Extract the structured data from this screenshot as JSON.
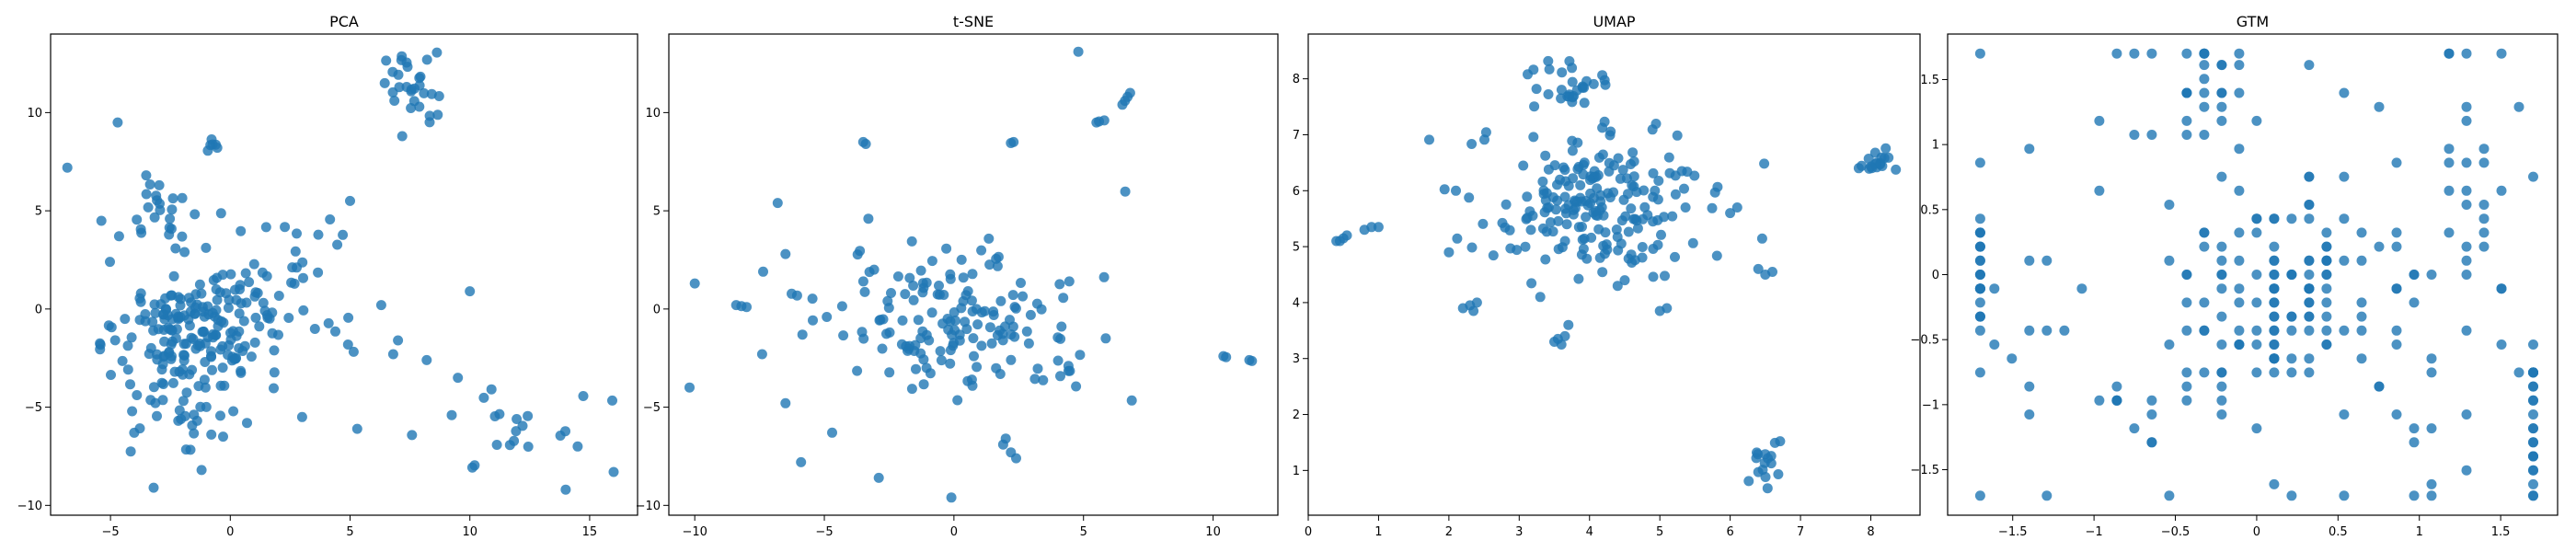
{
  "colors": {
    "marker": "#1f77b4",
    "axes": "#000000",
    "background": "#ffffff"
  },
  "chart_data": [
    {
      "type": "scatter",
      "title": "PCA",
      "xlabel": "",
      "ylabel": "",
      "xlim": [
        -7.5,
        17.0
      ],
      "ylim": [
        -10.5,
        14.0
      ],
      "xticks": [
        -5,
        0,
        5,
        10,
        15
      ],
      "yticks": [
        -10,
        -5,
        0,
        5,
        10
      ],
      "grid": false,
      "legend": "none",
      "clusters": [
        {
          "cx": -1.5,
          "cy": -0.8,
          "sx": 1.6,
          "sy": 1.5,
          "n": 170
        },
        {
          "cx": 1.8,
          "cy": 1.2,
          "sx": 1.5,
          "sy": 1.8,
          "n": 45
        },
        {
          "cx": -3.0,
          "cy": 4.8,
          "sx": 0.8,
          "sy": 0.9,
          "n": 25
        },
        {
          "cx": -1.2,
          "cy": -5.0,
          "sx": 0.8,
          "sy": 1.2,
          "n": 22
        },
        {
          "cx": -1.0,
          "cy": 8.2,
          "sx": 0.3,
          "sy": 0.4,
          "n": 6
        },
        {
          "cx": 7.5,
          "cy": 11.2,
          "sx": 0.6,
          "sy": 0.9,
          "n": 30
        },
        {
          "cx": 12.0,
          "cy": -6.5,
          "sx": 1.8,
          "sy": 1.0,
          "n": 20
        },
        {
          "cx": -4.5,
          "cy": -3.5,
          "sx": 1.0,
          "sy": 2.5,
          "n": 10
        }
      ],
      "points": [
        [
          -6.8,
          7.2
        ],
        [
          -4.7,
          9.5
        ],
        [
          5.0,
          5.5
        ],
        [
          5.3,
          -6.1
        ],
        [
          10.0,
          0.9
        ],
        [
          14.5,
          -7.0
        ],
        [
          16.0,
          -8.3
        ],
        [
          14.0,
          -9.2
        ],
        [
          -3.2,
          -9.1
        ],
        [
          -1.2,
          -8.2
        ],
        [
          -0.3,
          -6.5
        ],
        [
          0.7,
          -5.8
        ],
        [
          6.8,
          -2.3
        ],
        [
          8.2,
          -2.6
        ],
        [
          9.5,
          -3.5
        ],
        [
          6.3,
          0.2
        ],
        [
          7.0,
          -1.6
        ],
        [
          3.0,
          -5.5
        ]
      ]
    },
    {
      "type": "scatter",
      "title": "t-SNE",
      "xlabel": "",
      "ylabel": "",
      "xlim": [
        -11.0,
        12.5
      ],
      "ylim": [
        -10.5,
        14.0
      ],
      "xticks": [
        -10,
        -5,
        0,
        5,
        10
      ],
      "yticks": [
        -10,
        -5,
        0,
        5,
        10
      ],
      "grid": false,
      "legend": "none",
      "clusters": [
        {
          "cx": 0.0,
          "cy": -0.3,
          "sx": 2.6,
          "sy": 1.9,
          "n": 150
        },
        {
          "cx": 4.2,
          "cy": -3.0,
          "sx": 0.6,
          "sy": 0.7,
          "n": 10
        }
      ],
      "points": [
        [
          4.8,
          13.1
        ],
        [
          6.6,
          10.6
        ],
        [
          6.8,
          11.0
        ],
        [
          6.5,
          10.4
        ],
        [
          6.7,
          10.8
        ],
        [
          5.8,
          9.6
        ],
        [
          5.5,
          9.5
        ],
        [
          5.6,
          9.55
        ],
        [
          -3.5,
          8.5
        ],
        [
          -3.4,
          8.4
        ],
        [
          2.3,
          8.5
        ],
        [
          2.2,
          8.45
        ],
        [
          -10.2,
          -4.0
        ],
        [
          -10.0,
          1.3
        ],
        [
          -8.4,
          0.2
        ],
        [
          -8.2,
          0.15
        ],
        [
          -8.0,
          0.1
        ],
        [
          -7.4,
          -2.3
        ],
        [
          -6.5,
          -4.8
        ],
        [
          -6.8,
          5.4
        ],
        [
          -6.5,
          2.8
        ],
        [
          -5.9,
          -7.8
        ],
        [
          -4.7,
          -6.3
        ],
        [
          -2.9,
          -8.6
        ],
        [
          -0.1,
          -9.6
        ],
        [
          2.0,
          -6.6
        ],
        [
          2.2,
          -7.3
        ],
        [
          2.4,
          -7.6
        ],
        [
          1.9,
          -6.9
        ],
        [
          -3.3,
          4.6
        ],
        [
          10.4,
          -2.4
        ],
        [
          10.5,
          -2.45
        ],
        [
          11.4,
          -2.6
        ],
        [
          11.5,
          -2.65
        ]
      ]
    },
    {
      "type": "scatter",
      "title": "UMAP",
      "xlabel": "",
      "ylabel": "",
      "xlim": [
        0.0,
        8.7
      ],
      "ylim": [
        0.2,
        8.8
      ],
      "xticks": [
        0,
        1,
        2,
        3,
        4,
        5,
        6,
        7,
        8
      ],
      "yticks": [
        1,
        2,
        3,
        4,
        5,
        6,
        7,
        8
      ],
      "grid": false,
      "legend": "none",
      "clusters": [
        {
          "cx": 4.0,
          "cy": 5.7,
          "sx": 0.85,
          "sy": 0.7,
          "n": 200
        },
        {
          "cx": 3.7,
          "cy": 7.9,
          "sx": 0.35,
          "sy": 0.25,
          "n": 28
        },
        {
          "cx": 8.1,
          "cy": 6.5,
          "sx": 0.12,
          "sy": 0.1,
          "n": 18
        },
        {
          "cx": 6.5,
          "cy": 1.1,
          "sx": 0.15,
          "sy": 0.3,
          "n": 16
        }
      ],
      "points": [
        [
          0.4,
          5.1
        ],
        [
          0.5,
          5.15
        ],
        [
          0.55,
          5.2
        ],
        [
          0.45,
          5.1
        ],
        [
          0.8,
          5.3
        ],
        [
          0.9,
          5.35
        ],
        [
          1.0,
          5.35
        ],
        [
          2.2,
          3.9
        ],
        [
          2.35,
          3.85
        ],
        [
          2.4,
          4.0
        ],
        [
          2.3,
          3.95
        ],
        [
          3.5,
          3.3
        ],
        [
          3.6,
          3.25
        ],
        [
          3.65,
          3.4
        ],
        [
          3.55,
          3.35
        ],
        [
          3.7,
          3.6
        ],
        [
          3.3,
          4.1
        ],
        [
          5.1,
          3.9
        ],
        [
          5.0,
          3.85
        ],
        [
          4.5,
          4.4
        ],
        [
          4.4,
          4.3
        ],
        [
          6.4,
          4.6
        ],
        [
          6.5,
          4.5
        ],
        [
          6.6,
          4.55
        ],
        [
          2.0,
          4.9
        ],
        [
          2.1,
          6.0
        ],
        [
          6.0,
          5.6
        ],
        [
          6.1,
          5.7
        ]
      ]
    },
    {
      "type": "scatter",
      "title": "GTM",
      "xlabel": "",
      "ylabel": "",
      "xlim": [
        -1.9,
        1.85
      ],
      "ylim": [
        -1.85,
        1.85
      ],
      "xticks": [
        -1.5,
        -1.0,
        -0.5,
        0.0,
        0.5,
        1.0,
        1.5
      ],
      "yticks": [
        -1.5,
        -1.0,
        -0.5,
        0.0,
        0.5,
        1.0,
        1.5
      ],
      "grid": false,
      "legend": "none",
      "grid_step": 0.1075,
      "clusters": [
        {
          "cx": 0.2,
          "cy": -0.1,
          "sx": 0.35,
          "sy": 0.4,
          "n": 120
        },
        {
          "cx": -1.7,
          "cy": 0.0,
          "sx": 0.03,
          "sy": 0.3,
          "n": 25
        },
        {
          "cx": 1.7,
          "cy": -1.2,
          "sx": 0.06,
          "sy": 0.35,
          "n": 22
        },
        {
          "cx": -0.3,
          "cy": 1.45,
          "sx": 0.12,
          "sy": 0.25,
          "n": 25
        },
        {
          "cx": 1.35,
          "cy": 0.6,
          "sx": 0.2,
          "sy": 0.4,
          "n": 25
        },
        {
          "cx": -0.7,
          "cy": -0.9,
          "sx": 0.5,
          "sy": 0.25,
          "n": 20
        },
        {
          "cx": 0.9,
          "cy": -0.9,
          "sx": 0.5,
          "sy": 0.4,
          "n": 20
        }
      ],
      "points": [
        [
          -1.7,
          1.7
        ],
        [
          -1.7,
          -1.7
        ],
        [
          -1.25,
          -1.7
        ],
        [
          -0.5,
          -1.7
        ],
        [
          0.5,
          -1.7
        ],
        [
          1.0,
          -1.7
        ],
        [
          1.1,
          -1.7
        ],
        [
          1.7,
          -1.7
        ],
        [
          1.7,
          -1.6
        ],
        [
          1.15,
          1.7
        ],
        [
          1.2,
          1.7
        ],
        [
          1.25,
          1.7
        ],
        [
          1.55,
          1.7
        ],
        [
          -0.85,
          1.7
        ],
        [
          -0.75,
          1.7
        ],
        [
          -0.65,
          1.7
        ],
        [
          -0.4,
          1.7
        ],
        [
          -1.0,
          1.15
        ],
        [
          -0.8,
          1.08
        ],
        [
          -1.35,
          1.0
        ],
        [
          -1.35,
          0.13
        ],
        [
          -1.25,
          0.13
        ],
        [
          -1.1,
          -0.15
        ],
        [
          -1.0,
          0.65
        ],
        [
          -0.5,
          0.55
        ],
        [
          0.3,
          1.6
        ],
        [
          0.55,
          1.45
        ],
        [
          0.8,
          1.25
        ],
        [
          1.6,
          1.3
        ],
        [
          -1.35,
          -0.48
        ],
        [
          -1.25,
          -0.48
        ],
        [
          -1.2,
          -0.48
        ],
        [
          -1.35,
          -1.08
        ]
      ]
    }
  ]
}
